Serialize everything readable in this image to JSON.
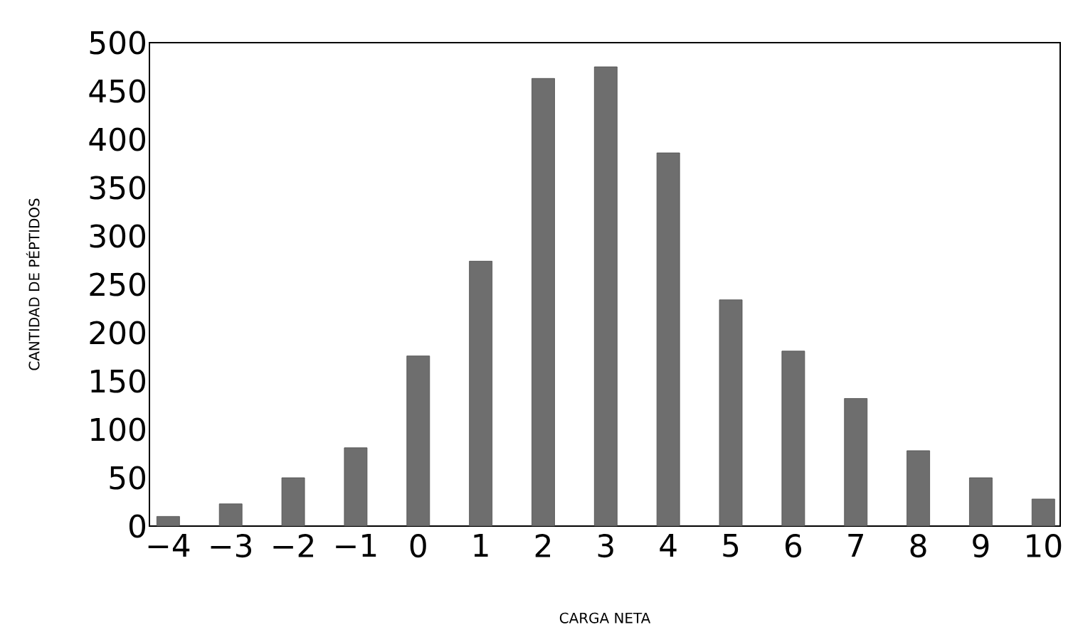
{
  "chart_data": {
    "type": "bar",
    "xlabel": "CARGA NETA",
    "ylabel": "CANTIDAD DE PÉPTIDOS",
    "categories": [
      "−4",
      "−3",
      "−2",
      "−1",
      "0",
      "1",
      "2",
      "3",
      "4",
      "5",
      "6",
      "7",
      "8",
      "9",
      "10"
    ],
    "values": [
      10,
      23,
      50,
      81,
      176,
      274,
      463,
      475,
      386,
      234,
      181,
      132,
      78,
      50,
      28
    ],
    "color": "#6e6e6e",
    "ylim": [
      0,
      500
    ],
    "yticks": [
      0,
      50,
      100,
      150,
      200,
      250,
      300,
      350,
      400,
      450,
      500
    ],
    "grid": false
  }
}
